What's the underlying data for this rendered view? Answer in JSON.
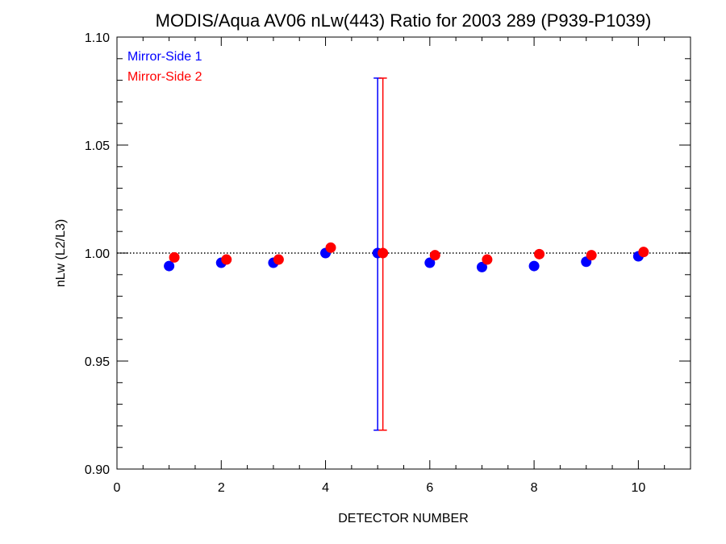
{
  "chart_data": {
    "type": "scatter",
    "title": "MODIS/Aqua AV06 nLw(443) Ratio for 2003 289 (P939-P1039)",
    "xlabel": "DETECTOR NUMBER",
    "ylabel": "nLw (L2/L3)",
    "xlim": [
      0,
      11
    ],
    "ylim": [
      0.9,
      1.1
    ],
    "x_ticks": [
      0,
      2,
      4,
      6,
      8,
      10
    ],
    "x_tick_labels": [
      "0",
      "2",
      "4",
      "6",
      "8",
      "10"
    ],
    "y_ticks": [
      0.9,
      0.95,
      1.0,
      1.05,
      1.1
    ],
    "y_tick_labels": [
      "0.90",
      "0.95",
      "1.00",
      "1.05",
      "1.10"
    ],
    "reference_line": 1.0,
    "legend_position": "top-left",
    "series": [
      {
        "name": "Mirror-Side 1",
        "color": "#0000ff",
        "x": [
          1,
          2,
          3,
          4,
          5,
          6,
          7,
          8,
          9,
          10
        ],
        "y": [
          0.994,
          0.9955,
          0.9955,
          1.0,
          1.0,
          0.9955,
          0.9935,
          0.994,
          0.996,
          0.9985
        ],
        "error_bar": {
          "x": 5,
          "low": 0.918,
          "high": 1.081
        }
      },
      {
        "name": "Mirror-Side 2",
        "color": "#ff0000",
        "x": [
          1.1,
          2.1,
          3.1,
          4.1,
          5.1,
          6.1,
          7.1,
          8.1,
          9.1,
          10.1
        ],
        "y": [
          0.998,
          0.997,
          0.997,
          1.0025,
          1.0,
          0.999,
          0.997,
          0.9995,
          0.999,
          1.0005
        ],
        "error_bar": {
          "x": 5.1,
          "low": 0.918,
          "high": 1.081
        }
      }
    ]
  }
}
